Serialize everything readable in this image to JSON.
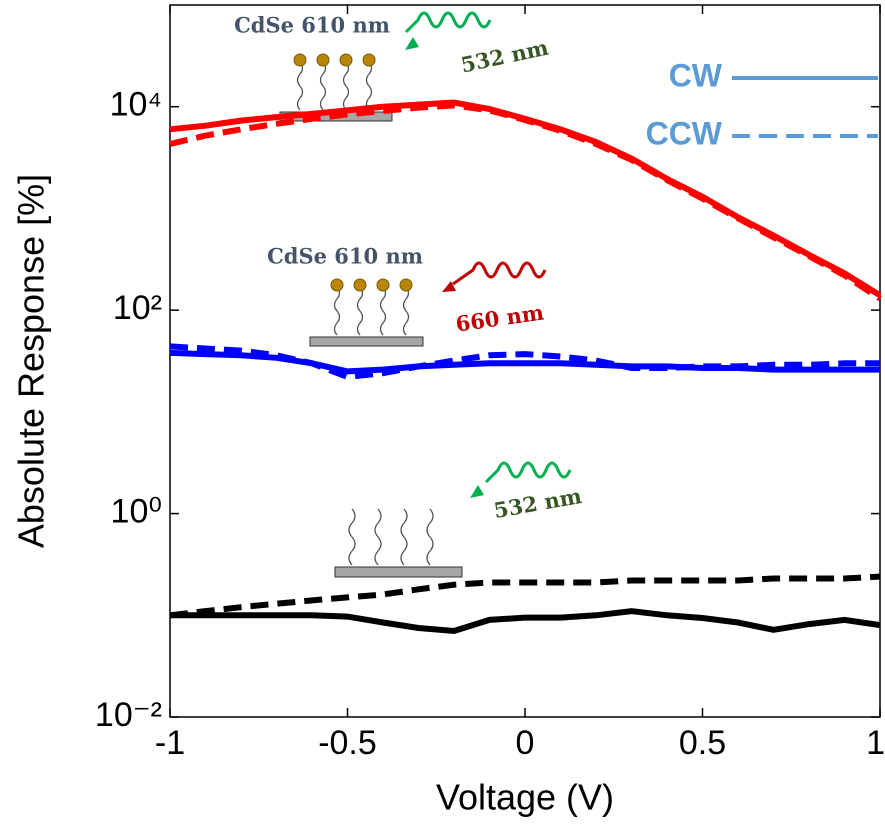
{
  "chart_data": {
    "type": "line",
    "x_label": "Voltage (V)",
    "y_label": "Absolute Response [%]",
    "log_y": true,
    "xlim": [
      -1,
      1
    ],
    "xticks": [
      -1,
      -0.5,
      0,
      0.5,
      1
    ],
    "ylim": [
      0.01,
      100000
    ],
    "yticks": [
      {
        "value": 0.01,
        "label": "10⁻²"
      },
      {
        "value": 1,
        "label": "10⁰"
      },
      {
        "value": 100,
        "label": "10²"
      },
      {
        "value": 10000,
        "label": "10⁴"
      }
    ],
    "x": [
      -1,
      -0.9,
      -0.8,
      -0.7,
      -0.6,
      -0.5,
      -0.4,
      -0.3,
      -0.2,
      -0.1,
      0,
      0.1,
      0.2,
      0.3,
      0.4,
      0.5,
      0.6,
      0.7,
      0.8,
      0.9,
      1
    ],
    "series": [
      {
        "color": "#ff0000",
        "dash": "solid",
        "values": [
          6000,
          6500,
          7300,
          7900,
          8500,
          9200,
          10000,
          10500,
          11000,
          9500,
          7600,
          6000,
          4500,
          3100,
          1950,
          1300,
          820,
          540,
          350,
          230,
          140
        ]
      },
      {
        "color": "#ff0000",
        "dash": "dashed",
        "values": [
          4300,
          5200,
          6000,
          6800,
          7600,
          8400,
          9100,
          9800,
          10300,
          9200,
          7400,
          5800,
          4300,
          3000,
          1900,
          1250,
          800,
          520,
          340,
          220,
          130
        ]
      },
      {
        "color": "#0000ff",
        "dash": "solid",
        "values": [
          38,
          37,
          36,
          34,
          30,
          25,
          26,
          28,
          29,
          30,
          30,
          30,
          29,
          28,
          28,
          27,
          27,
          26,
          26,
          26,
          26
        ]
      },
      {
        "color": "#0000ff",
        "dash": "dashed",
        "values": [
          44,
          42,
          40,
          36,
          30,
          22,
          24,
          28,
          32,
          36,
          37,
          35,
          32,
          27,
          27,
          28,
          28,
          29,
          29,
          30,
          30
        ]
      },
      {
        "color": "#000000",
        "dash": "solid",
        "values": [
          0.1,
          0.1,
          0.1,
          0.1,
          0.1,
          0.097,
          0.085,
          0.075,
          0.07,
          0.09,
          0.095,
          0.095,
          0.1,
          0.11,
          0.1,
          0.094,
          0.085,
          0.072,
          0.082,
          0.09,
          0.08
        ]
      },
      {
        "color": "#000000",
        "dash": "dashed",
        "values": [
          0.1,
          0.11,
          0.12,
          0.13,
          0.14,
          0.15,
          0.16,
          0.18,
          0.2,
          0.21,
          0.21,
          0.21,
          0.21,
          0.22,
          0.22,
          0.22,
          0.22,
          0.23,
          0.23,
          0.23,
          0.24
        ]
      }
    ],
    "legend": {
      "color": "#5b9bd5",
      "items": [
        {
          "label": "CW",
          "dash": "solid"
        },
        {
          "label": "CCW",
          "dash": "dashed"
        }
      ]
    },
    "annotations": [
      {
        "text": "CdSe 610 nm",
        "color": "#44546a"
      },
      {
        "text": "532 nm",
        "color": "#375623"
      },
      {
        "text": "CdSe 610 nm",
        "color": "#44546a"
      },
      {
        "text": "660 nm",
        "color": "#c00000"
      },
      {
        "text": "532 nm",
        "color": "#375623"
      }
    ]
  }
}
